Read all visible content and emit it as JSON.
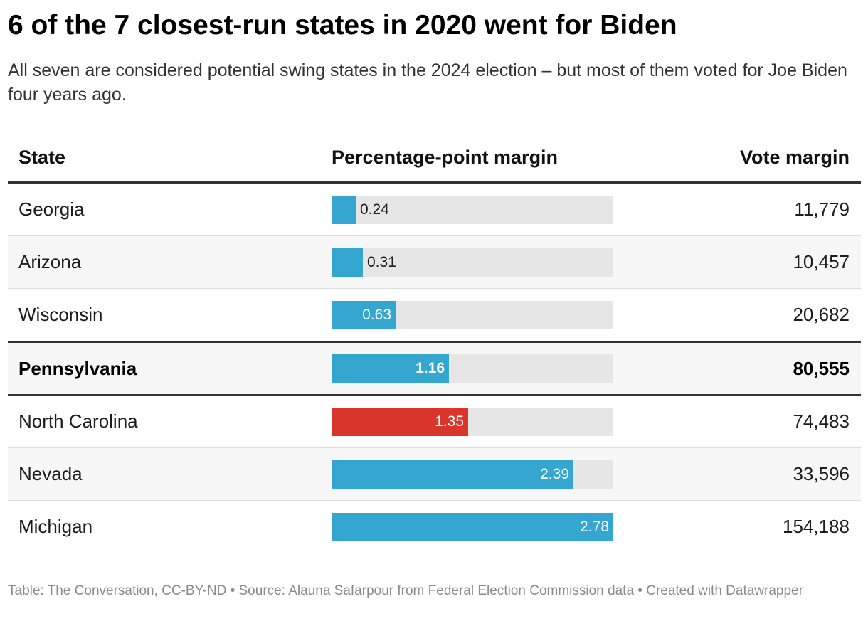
{
  "title": "6 of the 7 closest-run states in 2020 went for Biden",
  "subtitle": "All seven are considered potential swing states in the 2024 election – but most of them voted for Joe Biden four years ago.",
  "footer": "Table: The Conversation, CC-BY-ND • Source: Alauna Safarpour from Federal Election Commission data • Created with Datawrapper",
  "colors": {
    "biden": "#34a6cf",
    "trump": "#d9352b",
    "track": "#e6e6e6"
  },
  "chart_data": {
    "type": "table",
    "columns": [
      "State",
      "Percentage-point margin",
      "Vote margin"
    ],
    "bar_max": 2.78,
    "rows": [
      {
        "state": "Georgia",
        "pp": 0.24,
        "pp_label": "0.24",
        "vote": "11,779",
        "party": "biden",
        "bold": false
      },
      {
        "state": "Arizona",
        "pp": 0.31,
        "pp_label": "0.31",
        "vote": "10,457",
        "party": "biden",
        "bold": false
      },
      {
        "state": "Wisconsin",
        "pp": 0.63,
        "pp_label": "0.63",
        "vote": "20,682",
        "party": "biden",
        "bold": false
      },
      {
        "state": "Pennsylvania",
        "pp": 1.16,
        "pp_label": "1.16",
        "vote": "80,555",
        "party": "biden",
        "bold": true
      },
      {
        "state": "North Carolina",
        "pp": 1.35,
        "pp_label": "1.35",
        "vote": "74,483",
        "party": "trump",
        "bold": false
      },
      {
        "state": "Nevada",
        "pp": 2.39,
        "pp_label": "2.39",
        "vote": "33,596",
        "party": "biden",
        "bold": false
      },
      {
        "state": "Michigan",
        "pp": 2.78,
        "pp_label": "2.78",
        "vote": "154,188",
        "party": "biden",
        "bold": false
      }
    ]
  }
}
